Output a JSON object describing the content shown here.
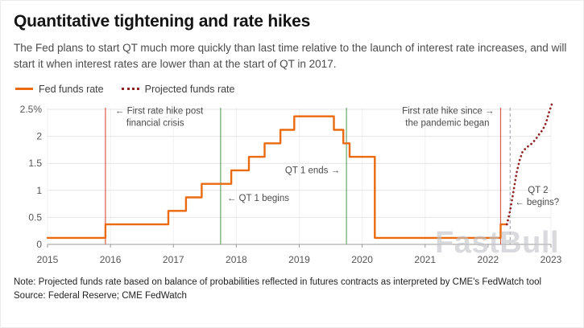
{
  "header": {
    "title": "Quantitative tightening and rate hikes",
    "subtitle": "The Fed plans to start QT much more quickly than last time relative to the launch of interest rate increases, and will start it when interest rates are lower than at the start of QT in 2017."
  },
  "legend": [
    {
      "label": "Fed funds rate",
      "color": "#ea6a0f",
      "style": "solid"
    },
    {
      "label": "Projected funds rate",
      "color": "#8e2323",
      "style": "dotted"
    }
  ],
  "watermark": "FastBull",
  "footer": {
    "note": "Note: Projected funds rate based on balance of probabilities reflected in futures contracts as interpreted by CME's FedWatch tool",
    "source": "Source: Federal Reserve; CME FedWatch"
  },
  "chart_data": {
    "type": "line",
    "x_range": [
      2015,
      2023
    ],
    "y_range": [
      0,
      2.5
    ],
    "x_ticks": [
      2015,
      2016,
      2017,
      2018,
      2019,
      2020,
      2021,
      2022,
      2023
    ],
    "y_ticks": [
      {
        "value": 0,
        "label": "0"
      },
      {
        "value": 0.5,
        "label": "0.5"
      },
      {
        "value": 1,
        "label": "1"
      },
      {
        "value": 1.5,
        "label": "1.5"
      },
      {
        "value": 2,
        "label": "2"
      },
      {
        "value": 2.5,
        "label": "2.5%"
      }
    ],
    "colors": {
      "grid": "#e4e4e4",
      "grid_vertical": "#f1f1f1",
      "axis": "#9a9a9a",
      "tick_label": "#555555",
      "annotation": "#4a4a4a"
    },
    "series": [
      {
        "id": "fed-funds-rate",
        "name": "Fed funds rate",
        "style": "solid",
        "color": "#ea6a0f",
        "points": [
          [
            2015.0,
            0.12
          ],
          [
            2015.92,
            0.12
          ],
          [
            2015.92,
            0.37
          ],
          [
            2016.92,
            0.37
          ],
          [
            2016.92,
            0.62
          ],
          [
            2017.2,
            0.62
          ],
          [
            2017.2,
            0.87
          ],
          [
            2017.45,
            0.87
          ],
          [
            2017.45,
            1.12
          ],
          [
            2017.92,
            1.12
          ],
          [
            2017.92,
            1.37
          ],
          [
            2018.2,
            1.37
          ],
          [
            2018.2,
            1.62
          ],
          [
            2018.45,
            1.62
          ],
          [
            2018.45,
            1.87
          ],
          [
            2018.7,
            1.87
          ],
          [
            2018.7,
            2.12
          ],
          [
            2018.92,
            2.12
          ],
          [
            2018.92,
            2.37
          ],
          [
            2019.55,
            2.37
          ],
          [
            2019.55,
            2.12
          ],
          [
            2019.7,
            2.12
          ],
          [
            2019.7,
            1.87
          ],
          [
            2019.8,
            1.87
          ],
          [
            2019.8,
            1.62
          ],
          [
            2020.2,
            1.62
          ],
          [
            2020.2,
            0.12
          ],
          [
            2022.2,
            0.12
          ],
          [
            2022.2,
            0.37
          ],
          [
            2022.3,
            0.37
          ]
        ]
      },
      {
        "id": "projected-funds-rate",
        "name": "Projected funds rate",
        "style": "dotted",
        "color": "#8e2323",
        "points": [
          [
            2022.3,
            0.37
          ],
          [
            2022.35,
            0.62
          ],
          [
            2022.4,
            0.95
          ],
          [
            2022.45,
            1.3
          ],
          [
            2022.5,
            1.55
          ],
          [
            2022.55,
            1.72
          ],
          [
            2022.62,
            1.8
          ],
          [
            2022.7,
            1.87
          ],
          [
            2022.76,
            1.95
          ],
          [
            2022.82,
            2.05
          ],
          [
            2022.87,
            2.12
          ],
          [
            2022.92,
            2.25
          ],
          [
            2022.97,
            2.45
          ],
          [
            2023.02,
            2.62
          ]
        ]
      }
    ],
    "vlines": [
      {
        "id": "rate-hike-2015",
        "x": 2015.92,
        "color": "#dd5c4a",
        "style": "solid"
      },
      {
        "id": "qt1-begin",
        "x": 2017.75,
        "color": "#69a56e",
        "style": "solid"
      },
      {
        "id": "qt1-end",
        "x": 2019.75,
        "color": "#69a56e",
        "style": "solid"
      },
      {
        "id": "rate-hike-2022",
        "x": 2022.2,
        "color": "#dd5c4a",
        "style": "solid"
      },
      {
        "id": "qt2-begin",
        "x": 2022.35,
        "color": "#98a0a6",
        "style": "dashed"
      }
    ],
    "annotations": [
      {
        "id": "first-hike-post-crisis",
        "lines": [
          "← First rate hike post",
          "financial crisis"
        ],
        "x": 2015.92,
        "dx": 12,
        "y": 2.42,
        "anchor": "start",
        "line_dx": [
          0,
          14
        ]
      },
      {
        "id": "first-hike-pandemic",
        "lines": [
          "First rate hike since →",
          "the pandemic began"
        ],
        "x": 2022.2,
        "dx": -8,
        "y": 2.42,
        "anchor": "end",
        "line_dx": [
          0,
          -6
        ]
      },
      {
        "id": "qt1-ends-label",
        "lines": [
          "QT 1 ends →"
        ],
        "x": 2019.75,
        "dx": -8,
        "y": 1.32,
        "anchor": "end"
      },
      {
        "id": "qt1-begins-label",
        "lines": [
          "← QT 1 begins"
        ],
        "x": 2017.75,
        "dx": 8,
        "y": 0.8,
        "anchor": "start"
      },
      {
        "id": "qt2-begins-label",
        "lines": [
          "QT 2",
          "← begins?"
        ],
        "x": 2022.35,
        "dx": 6,
        "y": 0.95,
        "anchor": "start",
        "line_dx": [
          16,
          0
        ]
      }
    ]
  }
}
